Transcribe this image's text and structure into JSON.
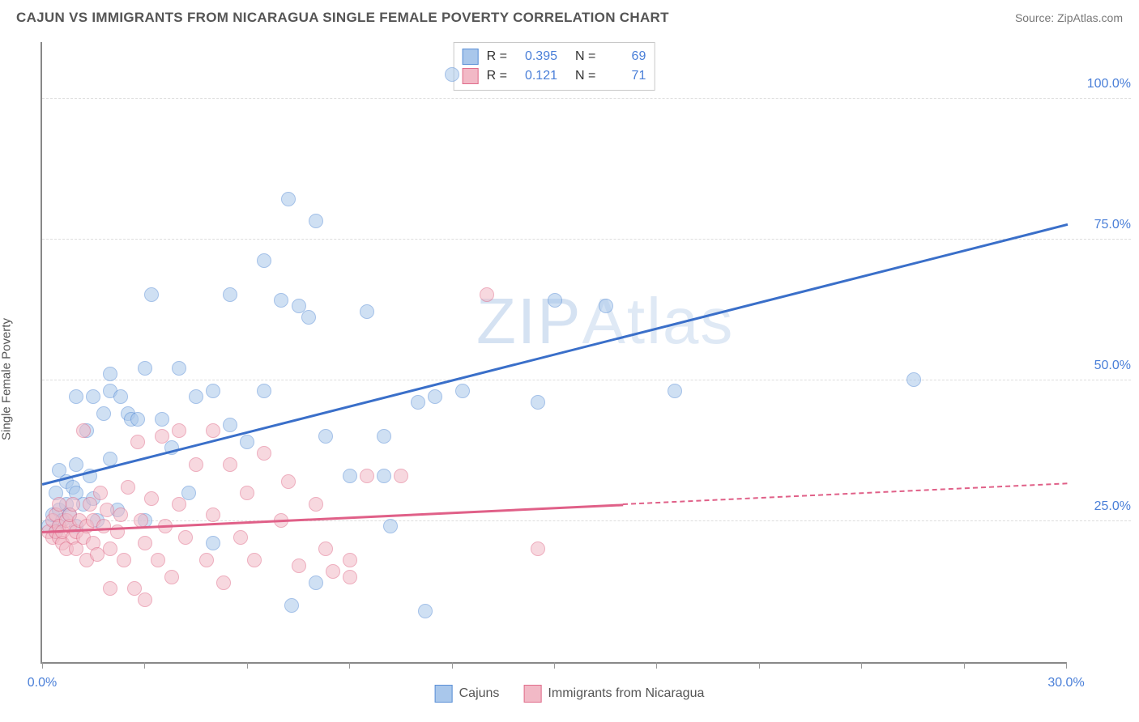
{
  "header": {
    "title": "CAJUN VS IMMIGRANTS FROM NICARAGUA SINGLE FEMALE POVERTY CORRELATION CHART",
    "source_label": "Source:",
    "source_name": "ZipAtlas.com"
  },
  "ylabel": "Single Female Poverty",
  "watermark": {
    "part1": "ZIP",
    "part2": "Atlas"
  },
  "chart": {
    "type": "scatter",
    "background_color": "#ffffff",
    "grid_color": "#dddddd",
    "axis_color": "#888888",
    "x_axis": {
      "min": 0,
      "max": 30,
      "ticks": [
        0,
        3,
        6,
        9,
        12,
        15,
        18,
        21,
        24,
        27,
        30
      ],
      "labels": [
        {
          "pos": 0,
          "text": "0.0%"
        },
        {
          "pos": 30,
          "text": "30.0%"
        }
      ],
      "label_color": "#4a7fd8",
      "label_fontsize": 16
    },
    "y_axis": {
      "min": 0,
      "max": 110,
      "gridlines": [
        25,
        50,
        75,
        100
      ],
      "labels": [
        {
          "pos": 25,
          "text": "25.0%"
        },
        {
          "pos": 50,
          "text": "50.0%"
        },
        {
          "pos": 75,
          "text": "75.0%"
        },
        {
          "pos": 100,
          "text": "100.0%"
        }
      ],
      "label_color": "#4a7fd8",
      "label_fontsize": 16
    },
    "series": [
      {
        "name": "Cajuns",
        "marker_radius": 9,
        "fill": "#a9c7eb",
        "fill_opacity": 0.55,
        "stroke": "#5a8fd6",
        "stroke_width": 1.2,
        "trend": {
          "color": "#3a6fc9",
          "width": 2.5,
          "y_at_xmin": 32,
          "y_at_xmax": 78,
          "solid_until_x": 30
        },
        "stats": {
          "R": "0.395",
          "N": "69"
        },
        "points": [
          [
            0.2,
            24
          ],
          [
            0.3,
            26
          ],
          [
            0.4,
            23
          ],
          [
            0.4,
            30
          ],
          [
            0.5,
            27
          ],
          [
            0.5,
            24
          ],
          [
            0.5,
            34
          ],
          [
            0.6,
            25
          ],
          [
            0.7,
            28
          ],
          [
            0.7,
            32
          ],
          [
            0.8,
            26
          ],
          [
            0.9,
            31
          ],
          [
            1.0,
            24
          ],
          [
            1.0,
            35
          ],
          [
            1.0,
            47
          ],
          [
            1.0,
            30
          ],
          [
            1.2,
            28
          ],
          [
            1.3,
            41
          ],
          [
            1.4,
            33
          ],
          [
            1.5,
            47
          ],
          [
            1.5,
            29
          ],
          [
            1.6,
            25
          ],
          [
            1.8,
            44
          ],
          [
            2.0,
            36
          ],
          [
            2.0,
            51
          ],
          [
            2.0,
            48
          ],
          [
            2.2,
            27
          ],
          [
            2.3,
            47
          ],
          [
            2.5,
            44
          ],
          [
            2.6,
            43
          ],
          [
            2.8,
            43
          ],
          [
            3.0,
            52
          ],
          [
            3.0,
            25
          ],
          [
            3.2,
            65
          ],
          [
            3.5,
            43
          ],
          [
            3.8,
            38
          ],
          [
            4.0,
            52
          ],
          [
            4.3,
            30
          ],
          [
            4.5,
            47
          ],
          [
            5.0,
            48
          ],
          [
            5.0,
            21
          ],
          [
            5.5,
            65
          ],
          [
            5.5,
            42
          ],
          [
            6.0,
            39
          ],
          [
            6.5,
            71
          ],
          [
            6.5,
            48
          ],
          [
            7.0,
            64
          ],
          [
            7.2,
            82
          ],
          [
            7.3,
            10
          ],
          [
            7.5,
            63
          ],
          [
            7.8,
            61
          ],
          [
            8.0,
            78
          ],
          [
            8.3,
            40
          ],
          [
            8.0,
            14
          ],
          [
            9.0,
            33
          ],
          [
            9.5,
            62
          ],
          [
            10.0,
            40
          ],
          [
            10.0,
            33
          ],
          [
            10.2,
            24
          ],
          [
            11.0,
            46
          ],
          [
            11.2,
            9
          ],
          [
            11.5,
            47
          ],
          [
            12.0,
            104
          ],
          [
            12.3,
            48
          ],
          [
            14.5,
            46
          ],
          [
            15.0,
            64
          ],
          [
            16.5,
            63
          ],
          [
            18.5,
            48
          ],
          [
            25.5,
            50
          ]
        ]
      },
      {
        "name": "Immigigrants from Nicaragua",
        "display_name": "Immigrants from Nicaragua",
        "marker_radius": 9,
        "fill": "#f2b9c6",
        "fill_opacity": 0.55,
        "stroke": "#e06c8a",
        "stroke_width": 1.2,
        "trend": {
          "color": "#e06088",
          "width": 2.5,
          "y_at_xmin": 23.5,
          "y_at_xmax": 32,
          "solid_until_x": 17
        },
        "stats": {
          "R": "0.121",
          "N": "71"
        },
        "points": [
          [
            0.2,
            23
          ],
          [
            0.3,
            22
          ],
          [
            0.3,
            25
          ],
          [
            0.4,
            23
          ],
          [
            0.4,
            26
          ],
          [
            0.5,
            22
          ],
          [
            0.5,
            24
          ],
          [
            0.5,
            28
          ],
          [
            0.6,
            21
          ],
          [
            0.6,
            23
          ],
          [
            0.7,
            20
          ],
          [
            0.7,
            25
          ],
          [
            0.8,
            24
          ],
          [
            0.8,
            26
          ],
          [
            0.9,
            22
          ],
          [
            0.9,
            28
          ],
          [
            1.0,
            23
          ],
          [
            1.0,
            20
          ],
          [
            1.1,
            25
          ],
          [
            1.2,
            22
          ],
          [
            1.2,
            41
          ],
          [
            1.3,
            24
          ],
          [
            1.3,
            18
          ],
          [
            1.4,
            28
          ],
          [
            1.5,
            25
          ],
          [
            1.5,
            21
          ],
          [
            1.6,
            19
          ],
          [
            1.7,
            30
          ],
          [
            1.8,
            24
          ],
          [
            1.9,
            27
          ],
          [
            2.0,
            20
          ],
          [
            2.0,
            13
          ],
          [
            2.2,
            23
          ],
          [
            2.3,
            26
          ],
          [
            2.4,
            18
          ],
          [
            2.5,
            31
          ],
          [
            2.7,
            13
          ],
          [
            2.8,
            39
          ],
          [
            2.9,
            25
          ],
          [
            3.0,
            21
          ],
          [
            3.0,
            11
          ],
          [
            3.2,
            29
          ],
          [
            3.4,
            18
          ],
          [
            3.5,
            40
          ],
          [
            3.6,
            24
          ],
          [
            3.8,
            15
          ],
          [
            4.0,
            28
          ],
          [
            4.0,
            41
          ],
          [
            4.2,
            22
          ],
          [
            4.5,
            35
          ],
          [
            4.8,
            18
          ],
          [
            5.0,
            26
          ],
          [
            5.0,
            41
          ],
          [
            5.3,
            14
          ],
          [
            5.5,
            35
          ],
          [
            5.8,
            22
          ],
          [
            6.0,
            30
          ],
          [
            6.2,
            18
          ],
          [
            6.5,
            37
          ],
          [
            7.0,
            25
          ],
          [
            7.2,
            32
          ],
          [
            7.5,
            17
          ],
          [
            8.0,
            28
          ],
          [
            8.3,
            20
          ],
          [
            8.5,
            16
          ],
          [
            9.0,
            18
          ],
          [
            9.0,
            15
          ],
          [
            9.5,
            33
          ],
          [
            10.5,
            33
          ],
          [
            13.0,
            65
          ],
          [
            14.5,
            20
          ]
        ]
      }
    ]
  },
  "stat_box": {
    "rows": [
      {
        "swatch_fill": "#a9c7eb",
        "swatch_stroke": "#5a8fd6",
        "R_label": "R =",
        "R": "0.395",
        "N_label": "N =",
        "N": "69"
      },
      {
        "swatch_fill": "#f2b9c6",
        "swatch_stroke": "#e06c8a",
        "R_label": "R =",
        "R": "0.121",
        "N_label": "N =",
        "N": "71"
      }
    ]
  },
  "legend": {
    "items": [
      {
        "swatch_fill": "#a9c7eb",
        "swatch_stroke": "#5a8fd6",
        "label": "Cajuns"
      },
      {
        "swatch_fill": "#f2b9c6",
        "swatch_stroke": "#e06c8a",
        "label": "Immigrants from Nicaragua"
      }
    ]
  }
}
